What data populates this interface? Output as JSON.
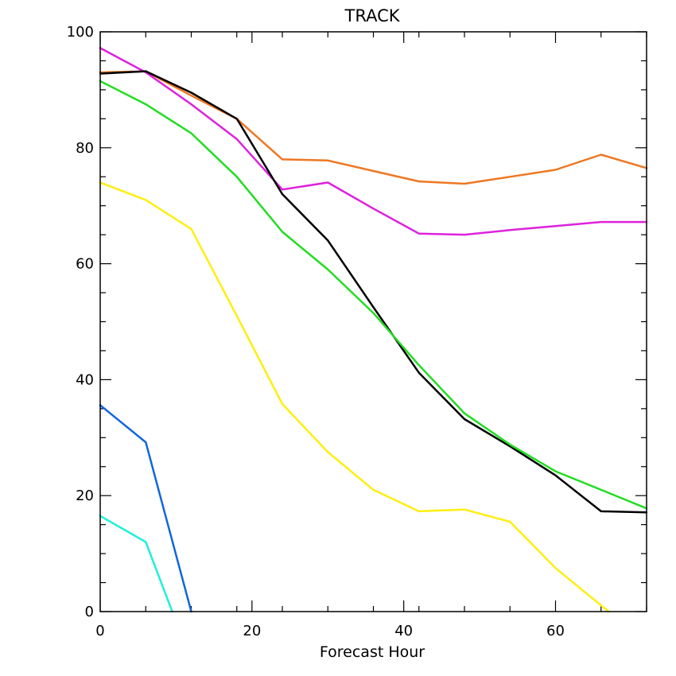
{
  "chart_data": {
    "type": "line",
    "title": "TRACK",
    "xlabel": "Forecast Hour",
    "ylabel": "",
    "xlim": [
      0,
      72
    ],
    "ylim": [
      0,
      100
    ],
    "xticks": [
      0,
      20,
      40,
      60
    ],
    "yticks": [
      0,
      20,
      40,
      60,
      80,
      100
    ],
    "x_minor_step": 6,
    "y_minor_step": 5,
    "grid": false,
    "series": [
      {
        "color": "#ee7722",
        "points": [
          [
            0,
            93.0
          ],
          [
            6,
            93.2
          ],
          [
            12,
            89.0
          ],
          [
            18,
            85.0
          ],
          [
            24,
            78.0
          ],
          [
            30,
            77.8
          ],
          [
            36,
            76.0
          ],
          [
            42,
            74.2
          ],
          [
            48,
            73.8
          ],
          [
            54,
            75.0
          ],
          [
            60,
            76.2
          ],
          [
            66,
            78.8
          ],
          [
            72,
            76.5
          ]
        ]
      },
      {
        "color": "#dd22dd",
        "points": [
          [
            0,
            97.2
          ],
          [
            6,
            93.0
          ],
          [
            12,
            87.5
          ],
          [
            18,
            81.5
          ],
          [
            24,
            72.8
          ],
          [
            30,
            74.0
          ],
          [
            36,
            69.5
          ],
          [
            42,
            65.2
          ],
          [
            48,
            65.0
          ],
          [
            54,
            65.8
          ],
          [
            60,
            66.5
          ],
          [
            66,
            67.2
          ],
          [
            72,
            67.2
          ]
        ]
      },
      {
        "color": "#000000",
        "points": [
          [
            0,
            92.8
          ],
          [
            6,
            93.2
          ],
          [
            12,
            89.5
          ],
          [
            18,
            85.0
          ],
          [
            24,
            72.0
          ],
          [
            30,
            64.0
          ],
          [
            36,
            52.5
          ],
          [
            42,
            41.2
          ],
          [
            48,
            33.2
          ],
          [
            54,
            28.5
          ],
          [
            60,
            23.5
          ],
          [
            66,
            17.3
          ],
          [
            72,
            17.1
          ]
        ]
      },
      {
        "color": "#22dd22",
        "points": [
          [
            0,
            91.5
          ],
          [
            6,
            87.5
          ],
          [
            12,
            82.5
          ],
          [
            18,
            75.0
          ],
          [
            24,
            65.5
          ],
          [
            30,
            59.0
          ],
          [
            36,
            51.5
          ],
          [
            42,
            42.5
          ],
          [
            48,
            34.2
          ],
          [
            54,
            28.8
          ],
          [
            60,
            24.2
          ],
          [
            66,
            21.0
          ],
          [
            72,
            17.8
          ]
        ]
      },
      {
        "color": "#ffee11",
        "points": [
          [
            0,
            74.0
          ],
          [
            6,
            71.0
          ],
          [
            12,
            66.0
          ],
          [
            18,
            51.0
          ],
          [
            24,
            35.8
          ],
          [
            30,
            27.5
          ],
          [
            36,
            21.0
          ],
          [
            42,
            17.3
          ],
          [
            48,
            17.6
          ],
          [
            54,
            15.5
          ],
          [
            60,
            7.5
          ],
          [
            67,
            0.0
          ]
        ]
      },
      {
        "color": "#1166dd",
        "points": [
          [
            0,
            35.6
          ],
          [
            6,
            29.2
          ],
          [
            12,
            0.0
          ]
        ]
      },
      {
        "color": "#22eedd",
        "points": [
          [
            0,
            16.5
          ],
          [
            6,
            12.0
          ],
          [
            9.5,
            0.0
          ]
        ]
      }
    ]
  }
}
